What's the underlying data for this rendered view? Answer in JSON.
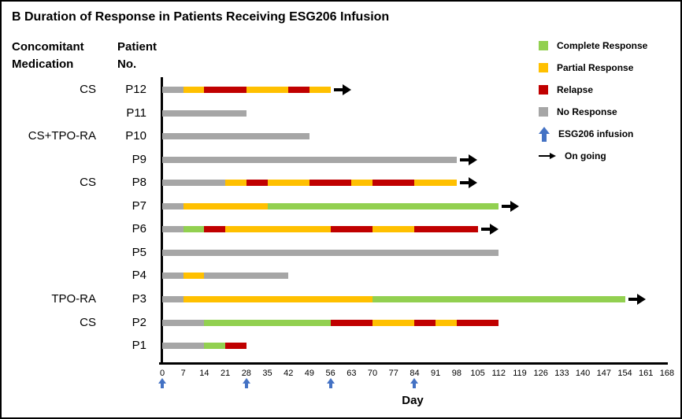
{
  "title": "B Duration of Response in Patients Receiving ESG206 Infusion",
  "headers": {
    "medication": [
      "Concomitant",
      "Medication"
    ],
    "patient": [
      "Patient",
      "No."
    ]
  },
  "legend": [
    {
      "label": "Complete Response",
      "swatch": "square",
      "color": "#92d050"
    },
    {
      "label": "Partial Response",
      "swatch": "square",
      "color": "#ffc000"
    },
    {
      "label": "Relapse",
      "swatch": "square",
      "color": "#c00000"
    },
    {
      "label": "No Response",
      "swatch": "square",
      "color": "#a6a6a6"
    },
    {
      "label": "ESG206 infusion",
      "swatch": "up-arrow",
      "color": "#4472c4"
    },
    {
      "label": "On going",
      "swatch": "right-arrow",
      "color": "#000000"
    }
  ],
  "chart_data": {
    "type": "timeline",
    "title": "B Duration of Response in Patients Receiving ESG206 Infusion",
    "xlabel": "Day",
    "xlim": [
      0,
      168
    ],
    "x_ticks": [
      0,
      7,
      14,
      21,
      28,
      35,
      42,
      49,
      56,
      63,
      70,
      77,
      84,
      91,
      98,
      105,
      112,
      119,
      126,
      133,
      140,
      147,
      154,
      161,
      168
    ],
    "infusion_days": [
      0,
      28,
      56,
      84
    ],
    "infusion_color": "#4472c4",
    "ongoing_color": "#000000",
    "status_colors": {
      "complete_response": "#92d050",
      "partial_response": "#ffc000",
      "relapse": "#c00000",
      "no_response": "#a6a6a6"
    },
    "patients": [
      {
        "id": "P12",
        "medication": "CS",
        "ongoing": true,
        "segments": [
          {
            "status": "no_response",
            "start": 0,
            "end": 7
          },
          {
            "status": "partial_response",
            "start": 7,
            "end": 14
          },
          {
            "status": "relapse",
            "start": 14,
            "end": 28
          },
          {
            "status": "partial_response",
            "start": 28,
            "end": 42
          },
          {
            "status": "relapse",
            "start": 42,
            "end": 49
          },
          {
            "status": "partial_response",
            "start": 49,
            "end": 56
          }
        ]
      },
      {
        "id": "P11",
        "medication": "",
        "ongoing": false,
        "segments": [
          {
            "status": "no_response",
            "start": 0,
            "end": 28
          }
        ]
      },
      {
        "id": "P10",
        "medication": "CS+TPO-RA",
        "ongoing": false,
        "segments": [
          {
            "status": "no_response",
            "start": 0,
            "end": 49
          }
        ]
      },
      {
        "id": "P9",
        "medication": "",
        "ongoing": true,
        "segments": [
          {
            "status": "no_response",
            "start": 0,
            "end": 98
          }
        ]
      },
      {
        "id": "P8",
        "medication": "CS",
        "ongoing": true,
        "segments": [
          {
            "status": "no_response",
            "start": 0,
            "end": 21
          },
          {
            "status": "partial_response",
            "start": 21,
            "end": 28
          },
          {
            "status": "relapse",
            "start": 28,
            "end": 35
          },
          {
            "status": "partial_response",
            "start": 35,
            "end": 49
          },
          {
            "status": "relapse",
            "start": 49,
            "end": 63
          },
          {
            "status": "partial_response",
            "start": 63,
            "end": 70
          },
          {
            "status": "relapse",
            "start": 70,
            "end": 84
          },
          {
            "status": "partial_response",
            "start": 84,
            "end": 98
          }
        ]
      },
      {
        "id": "P7",
        "medication": "",
        "ongoing": true,
        "segments": [
          {
            "status": "no_response",
            "start": 0,
            "end": 7
          },
          {
            "status": "partial_response",
            "start": 7,
            "end": 35
          },
          {
            "status": "complete_response",
            "start": 35,
            "end": 112
          }
        ]
      },
      {
        "id": "P6",
        "medication": "",
        "ongoing": true,
        "segments": [
          {
            "status": "no_response",
            "start": 0,
            "end": 7
          },
          {
            "status": "complete_response",
            "start": 7,
            "end": 14
          },
          {
            "status": "relapse",
            "start": 14,
            "end": 21
          },
          {
            "status": "partial_response",
            "start": 21,
            "end": 56
          },
          {
            "status": "relapse",
            "start": 56,
            "end": 70
          },
          {
            "status": "partial_response",
            "start": 70,
            "end": 84
          },
          {
            "status": "relapse",
            "start": 84,
            "end": 105
          }
        ]
      },
      {
        "id": "P5",
        "medication": "",
        "ongoing": false,
        "segments": [
          {
            "status": "no_response",
            "start": 0,
            "end": 112
          }
        ]
      },
      {
        "id": "P4",
        "medication": "",
        "ongoing": false,
        "segments": [
          {
            "status": "no_response",
            "start": 0,
            "end": 7
          },
          {
            "status": "partial_response",
            "start": 7,
            "end": 14
          },
          {
            "status": "no_response",
            "start": 14,
            "end": 42
          }
        ]
      },
      {
        "id": "P3",
        "medication": "TPO-RA",
        "ongoing": true,
        "segments": [
          {
            "status": "no_response",
            "start": 0,
            "end": 7
          },
          {
            "status": "partial_response",
            "start": 7,
            "end": 70
          },
          {
            "status": "complete_response",
            "start": 70,
            "end": 154
          }
        ]
      },
      {
        "id": "P2",
        "medication": "CS",
        "ongoing": false,
        "segments": [
          {
            "status": "no_response",
            "start": 0,
            "end": 14
          },
          {
            "status": "complete_response",
            "start": 14,
            "end": 56
          },
          {
            "status": "relapse",
            "start": 56,
            "end": 70
          },
          {
            "status": "partial_response",
            "start": 70,
            "end": 84
          },
          {
            "status": "relapse",
            "start": 84,
            "end": 91
          },
          {
            "status": "partial_response",
            "start": 91,
            "end": 98
          },
          {
            "status": "relapse",
            "start": 98,
            "end": 112
          }
        ]
      },
      {
        "id": "P1",
        "medication": "",
        "ongoing": false,
        "segments": [
          {
            "status": "no_response",
            "start": 0,
            "end": 14
          },
          {
            "status": "complete_response",
            "start": 14,
            "end": 21
          },
          {
            "status": "relapse",
            "start": 21,
            "end": 28
          }
        ]
      }
    ]
  }
}
